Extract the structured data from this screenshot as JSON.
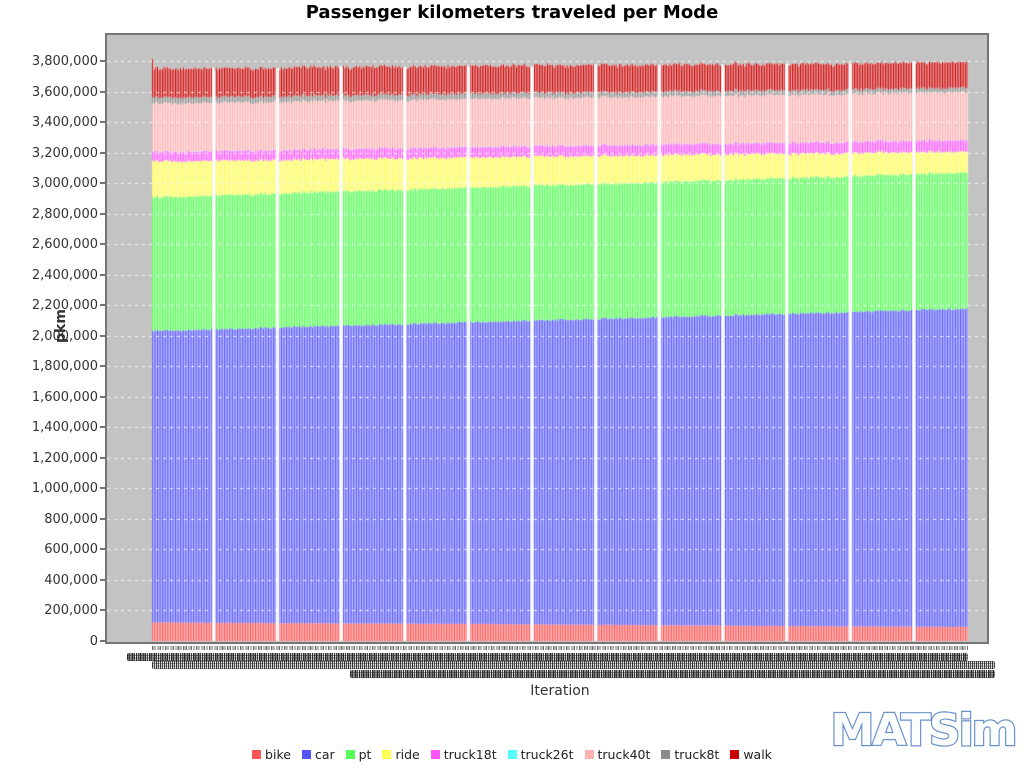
{
  "title": "Passenger kilometers traveled per Mode",
  "watermark": "MATSim",
  "y_axis": {
    "label": "pkm",
    "ticks": [
      "0",
      "200,000",
      "400,000",
      "600,000",
      "800,000",
      "1,000,000",
      "1,200,000",
      "1,400,000",
      "1,600,000",
      "1,800,000",
      "2,000,000",
      "2,200,000",
      "2,400,000",
      "2,600,000",
      "2,800,000",
      "3,000,000",
      "3,200,000",
      "3,400,000",
      "3,600,000",
      "3,800,000"
    ]
  },
  "x_axis": {
    "label": "Iteration",
    "ticks_note": "hundreds of per-iteration numeric labels overlapping into illegible dark bands"
  },
  "legend": [
    {
      "label": "bike",
      "color": "#FF5555"
    },
    {
      "label": "car",
      "color": "#5555FF"
    },
    {
      "label": "pt",
      "color": "#55FF55"
    },
    {
      "label": "ride",
      "color": "#FFFF55"
    },
    {
      "label": "truck18t",
      "color": "#FF55FF"
    },
    {
      "label": "truck26t",
      "color": "#55FFFF"
    },
    {
      "label": "truck40t",
      "color": "#FFB2B2"
    },
    {
      "label": "truck8t",
      "color": "#8C8C8C"
    },
    {
      "label": "walk",
      "color": "#C80000"
    }
  ],
  "chart_data": {
    "type": "bar",
    "stacked": true,
    "title": "Passenger kilometers traveled per Mode",
    "xlabel": "Iteration",
    "ylabel": "pkm",
    "ylim": [
      0,
      3800000
    ],
    "grid": "horizontal-dashed-white",
    "plot_background": "#C3C3C3",
    "legend_position": "bottom",
    "n_bars_approx": 500,
    "bar_groups": 13,
    "sample_points_note": "per-mode pkm read off the chart at 13 evenly spaced iterations across the run; intermediate bars vary smoothly between samples",
    "total_pkm_start_approx": 3750000,
    "total_pkm_end_approx": 3790000,
    "series": [
      {
        "name": "bike",
        "color": "#FF5555",
        "values_pkm": [
          122000,
          119000,
          117000,
          115000,
          113000,
          111000,
          108000,
          105000,
          102000,
          99000,
          96000,
          94000,
          92000
        ]
      },
      {
        "name": "car",
        "color": "#5555FF",
        "values_pkm": [
          1908000,
          1924000,
          1939000,
          1953000,
          1967000,
          1981000,
          1996000,
          2011000,
          2026000,
          2041000,
          2055000,
          2071000,
          2086000
        ]
      },
      {
        "name": "pt",
        "color": "#55FF55",
        "values_pkm": [
          875000,
          877000,
          878000,
          880000,
          881000,
          882000,
          884000,
          885000,
          886000,
          888000,
          889000,
          890000,
          891000
        ]
      },
      {
        "name": "ride",
        "color": "#FFFF55",
        "values_pkm": [
          235000,
          227000,
          219000,
          211000,
          203000,
          196000,
          188000,
          180000,
          172000,
          163000,
          155000,
          146000,
          137000
        ]
      },
      {
        "name": "truck18t",
        "color": "#FF55FF",
        "values_pkm": [
          62000,
          63000,
          64000,
          65000,
          66000,
          67000,
          68000,
          69000,
          70000,
          71000,
          72000,
          73000,
          75000
        ]
      },
      {
        "name": "truck26t",
        "color": "#55FFFF",
        "values_pkm": [
          2000,
          2000,
          2000,
          2000,
          2000,
          2000,
          2000,
          2000,
          2000,
          2000,
          2000,
          2000,
          2000
        ]
      },
      {
        "name": "truck40t",
        "color": "#FFB2B2",
        "values_pkm": [
          316000,
          315000,
          315000,
          314000,
          314000,
          313000,
          313000,
          313000,
          312000,
          312000,
          312000,
          312000,
          313000
        ]
      },
      {
        "name": "truck8t",
        "color": "#8C8C8C",
        "values_pkm": [
          39000,
          38000,
          37000,
          36000,
          36000,
          35000,
          34000,
          33000,
          32000,
          31000,
          30000,
          30000,
          29000
        ]
      },
      {
        "name": "walk",
        "color": "#C80000",
        "values_pkm": [
          190000,
          188000,
          186000,
          184000,
          182000,
          180000,
          178000,
          176000,
          174000,
          172000,
          170000,
          169000,
          168000
        ]
      }
    ]
  }
}
